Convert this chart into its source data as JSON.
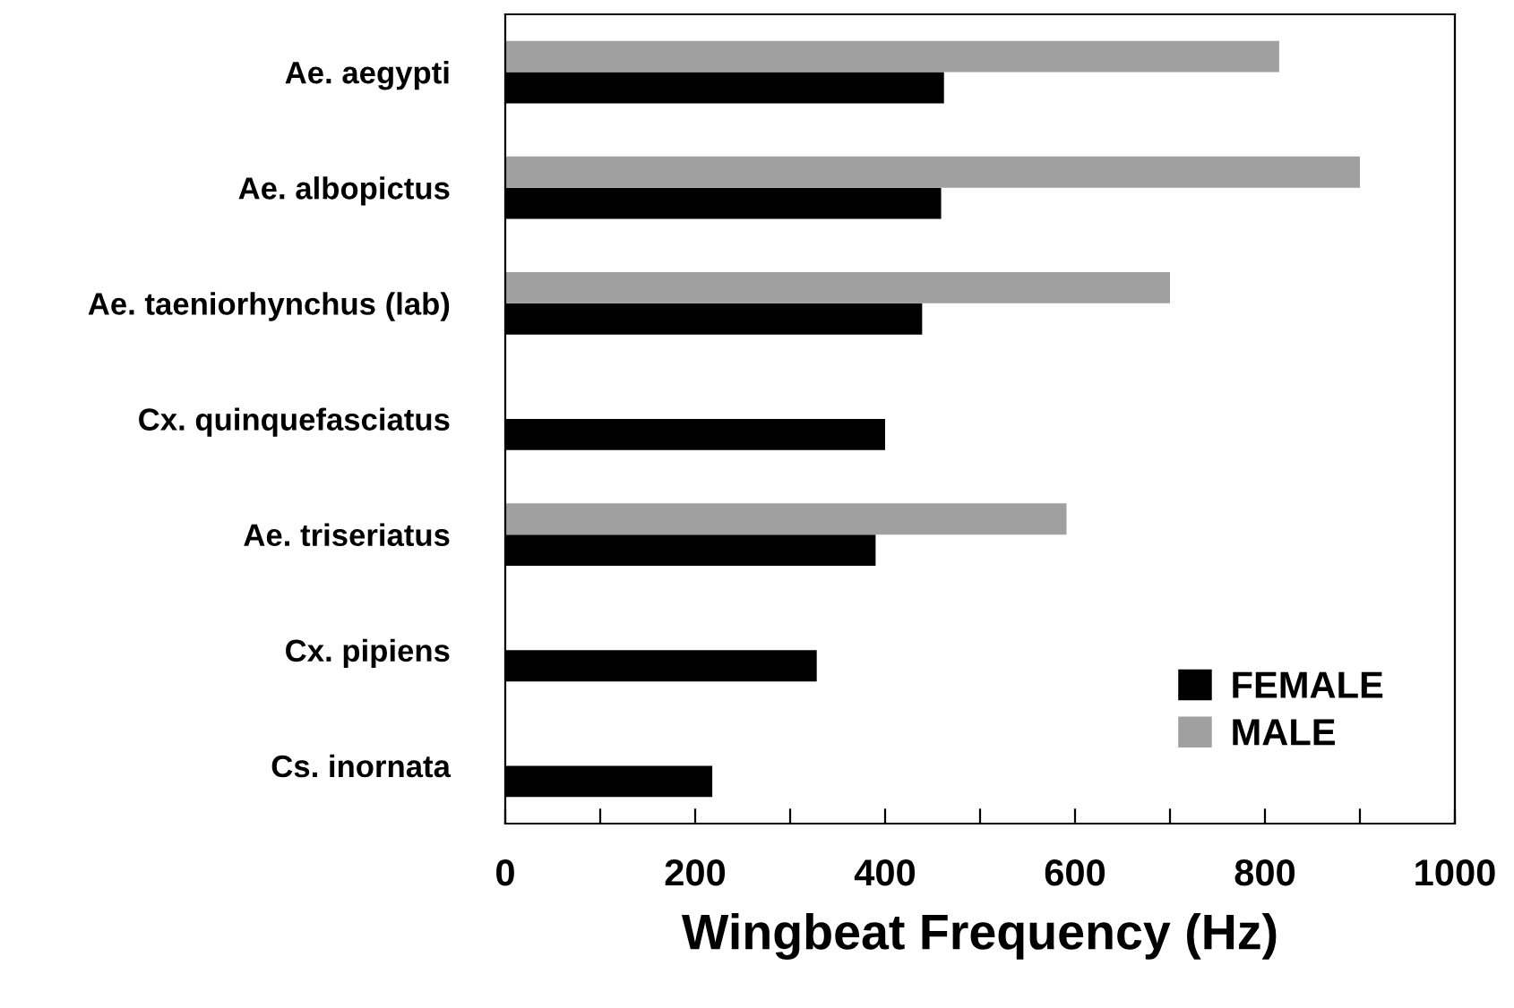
{
  "chart_data": {
    "type": "bar",
    "orientation": "horizontal",
    "xlabel": "Wingbeat Frequency (Hz)",
    "categories": [
      "Ae. aegypti",
      "Ae. albopictus",
      "Ae. taeniorhynchus (lab)",
      "Cx. quinquefasciatus",
      "Ae. triseriatus",
      "Cx. pipiens",
      "Cs. inornata"
    ],
    "series": [
      {
        "name": "FEMALE",
        "color": "#000000",
        "values": [
          462,
          459,
          439,
          400,
          390,
          328,
          218
        ]
      },
      {
        "name": "MALE",
        "color": "#a0a0a0",
        "values": [
          815,
          900,
          700,
          null,
          591,
          null,
          null
        ]
      }
    ],
    "xlim": [
      0,
      1000
    ],
    "xticks": [
      0,
      {
        "value": 100,
        "label": null
      },
      200,
      {
        "value": 300,
        "label": null
      },
      400,
      {
        "value": 500,
        "label": null
      },
      600,
      {
        "value": 700,
        "label": null
      },
      800,
      {
        "value": 900,
        "label": null
      },
      1000
    ],
    "legend": "bottom right",
    "grid": false
  }
}
